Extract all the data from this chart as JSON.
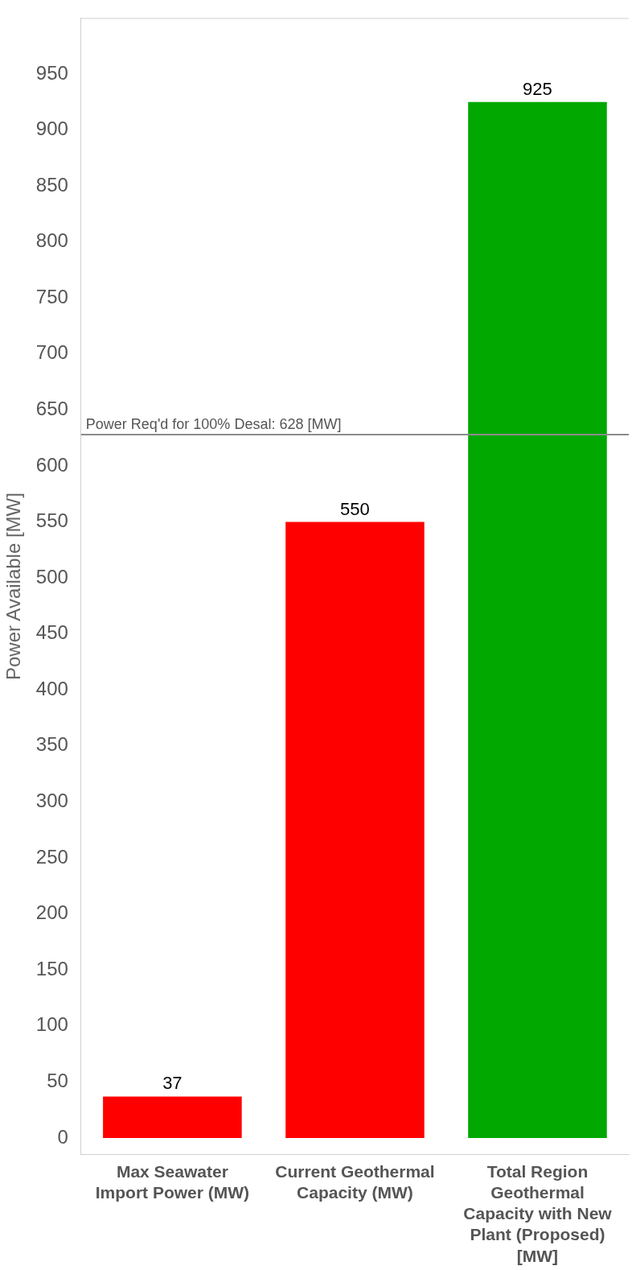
{
  "chart_data": {
    "type": "bar",
    "ylabel": "Power Available [MW]",
    "categories": [
      "Max Seawater Import Power (MW)",
      "Current Geothermal Capacity (MW)",
      "Total Region Geothermal Capacity with New Plant (Proposed) [MW]"
    ],
    "values": [
      37,
      550,
      925
    ],
    "colors": [
      "#ff0000",
      "#ff0000",
      "#00a800"
    ],
    "ylim": [
      -15,
      1000
    ],
    "yticks": [
      0,
      50,
      100,
      150,
      200,
      250,
      300,
      350,
      400,
      450,
      500,
      550,
      600,
      650,
      700,
      750,
      800,
      850,
      900,
      950
    ],
    "grid": false,
    "legend": false,
    "data_labels": true,
    "ref_lines": [
      {
        "axis": "y",
        "value": 628,
        "label": "Power Req'd for 100% Desal: 628 [MW]",
        "color": "#8c8c8c"
      }
    ]
  }
}
